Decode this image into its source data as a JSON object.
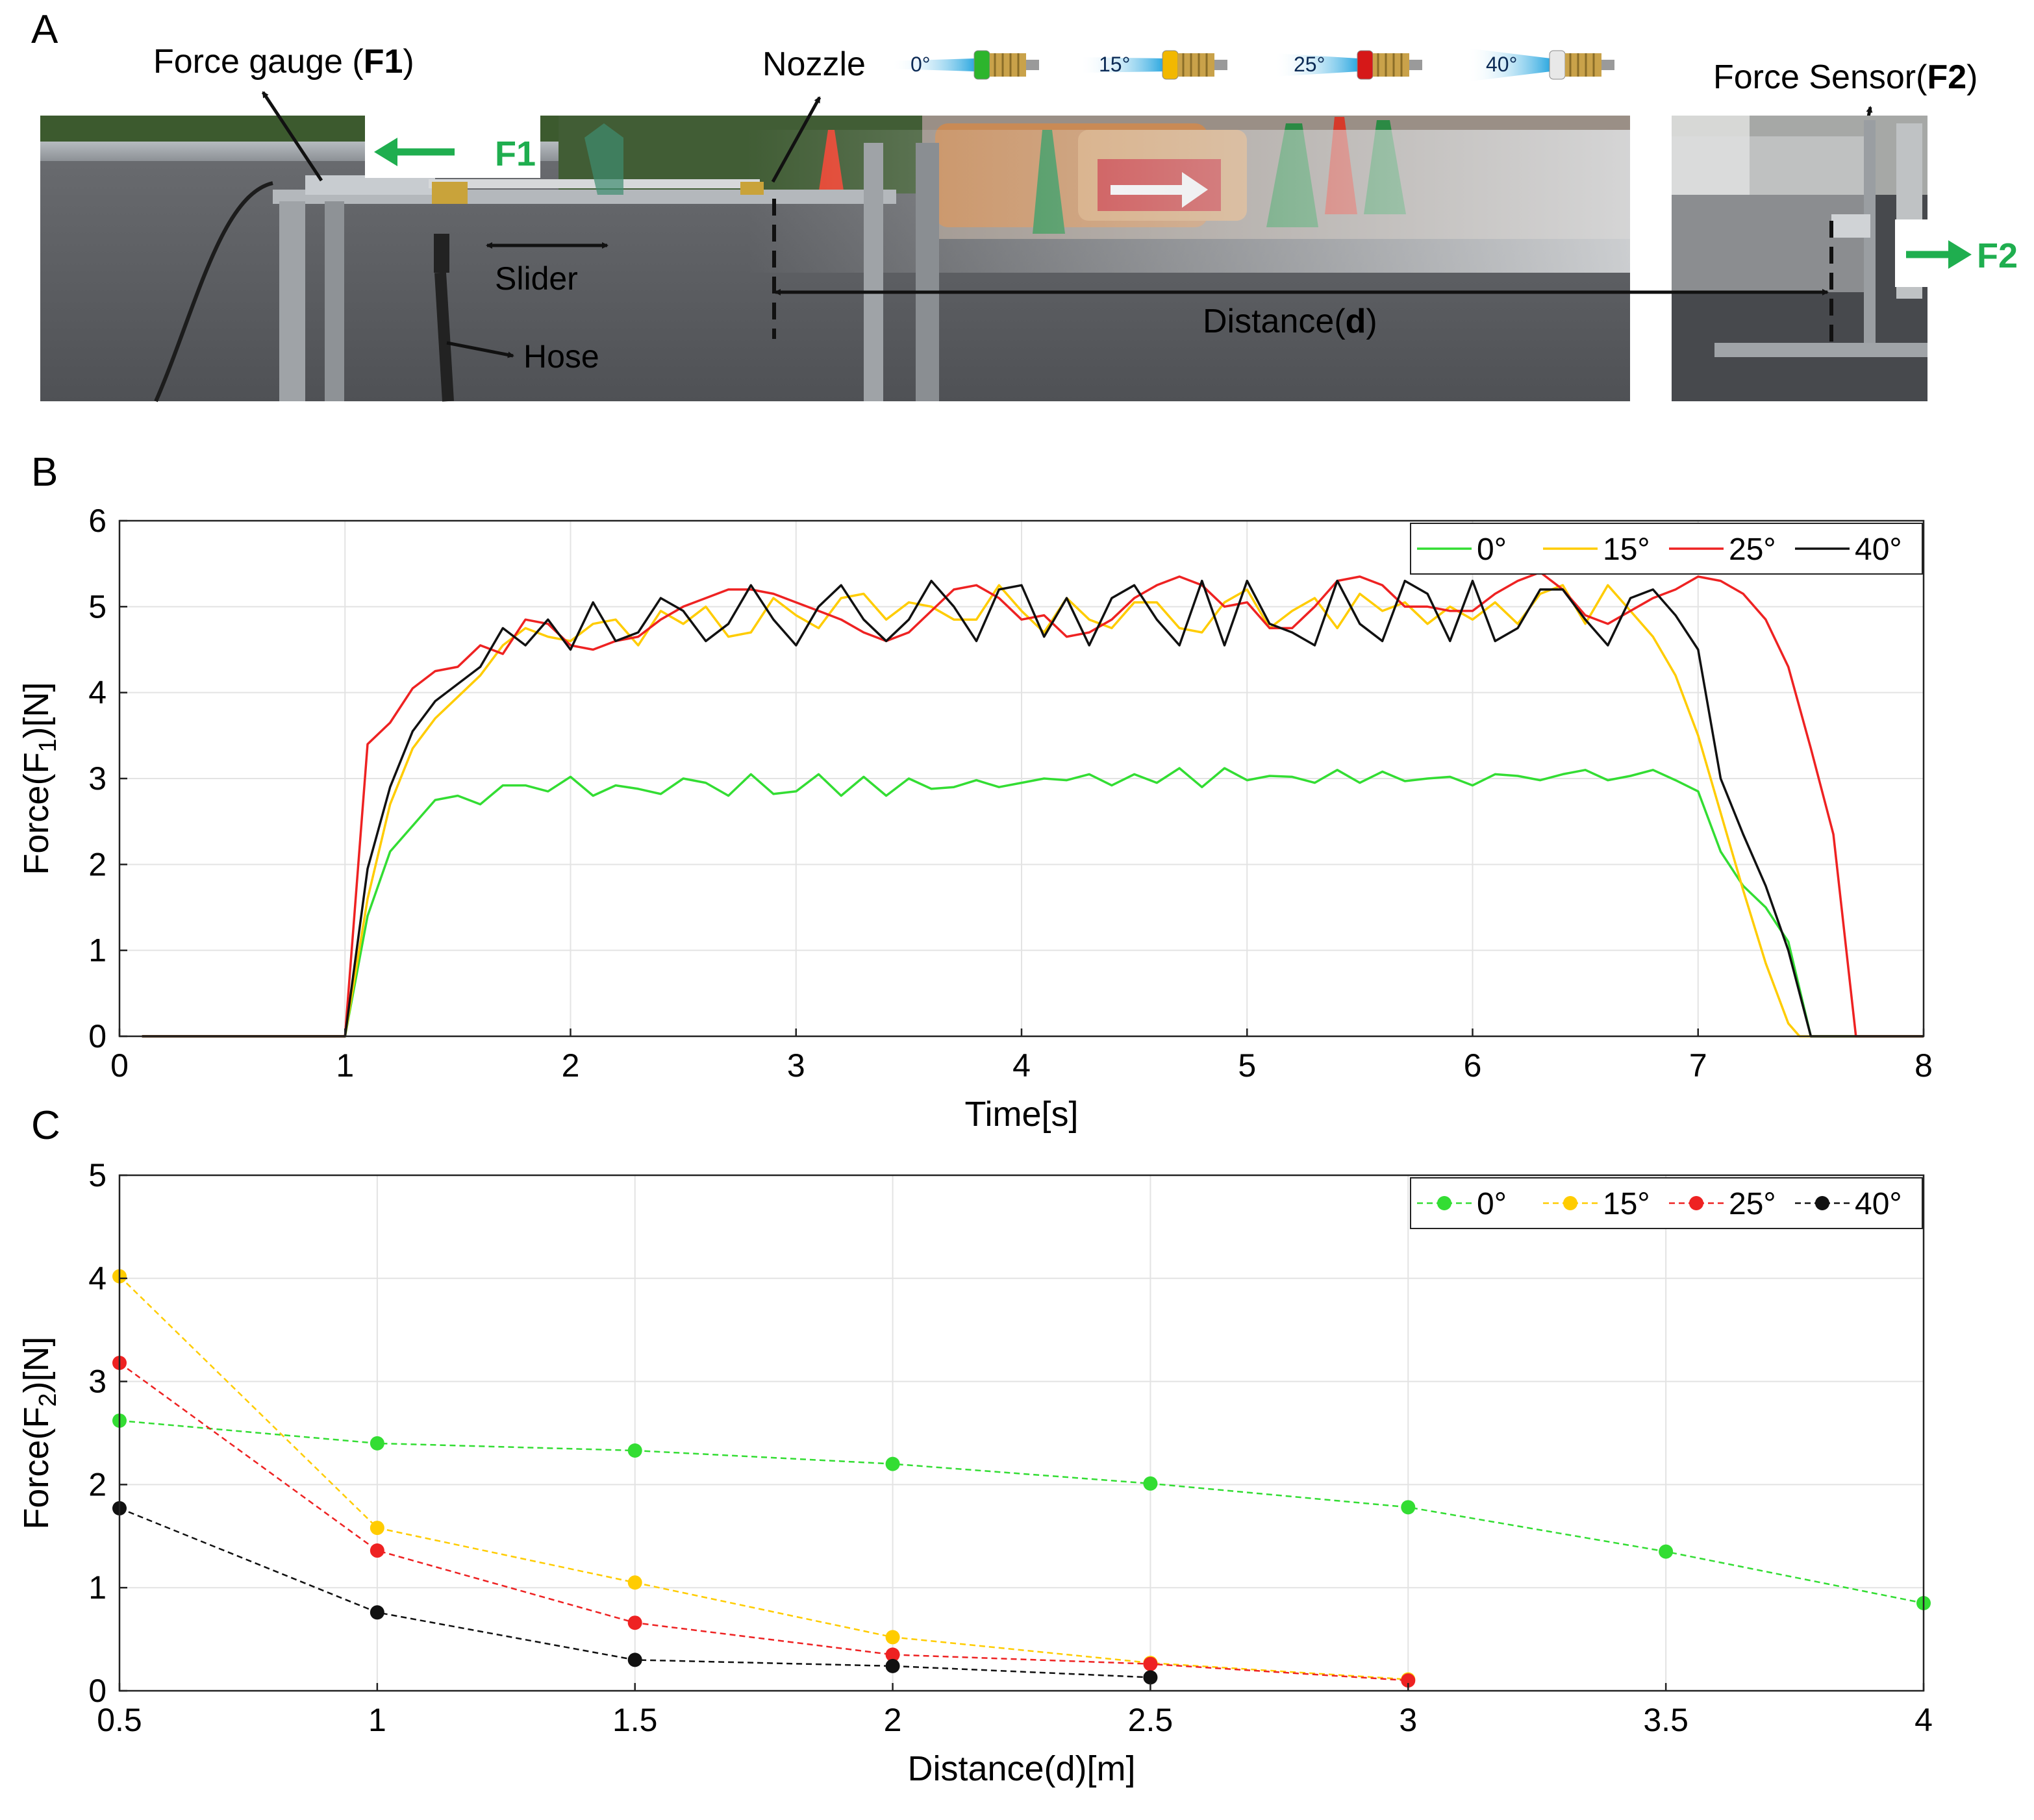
{
  "panel_letters": {
    "a": "A",
    "b": "B",
    "c": "C"
  },
  "photo": {
    "labels": {
      "force_gauge": "Force gauge",
      "force_gauge_sym": "F1",
      "nozzle": "Nozzle",
      "force_sensor": "Force Sensor",
      "force_sensor_sym": "F2",
      "slider": "Slider",
      "hose": "Hose",
      "distance": "Distance",
      "distance_sym": "d",
      "f1_arrow": "F1",
      "f2_arrow": "F2"
    },
    "nozzles": [
      {
        "angle": "0°",
        "tip_color": "#2db52d"
      },
      {
        "angle": "15°",
        "tip_color": "#f2b800"
      },
      {
        "angle": "25°",
        "tip_color": "#d61818"
      },
      {
        "angle": "40°",
        "tip_color": "#e8e8e8"
      }
    ],
    "colors": {
      "arrow_green": "#1fae4f",
      "spray_blue": "#2aa7e0",
      "asphalt": "#5b5d61"
    }
  },
  "chart_data": [
    {
      "type": "line",
      "panel": "B",
      "xlabel": "Time[s]",
      "ylabel": "Force(F1)[N]",
      "xlim": [
        0,
        8
      ],
      "ylim": [
        0,
        6
      ],
      "xticks": [
        0,
        1,
        2,
        3,
        4,
        5,
        6,
        7,
        8
      ],
      "yticks": [
        0,
        1,
        2,
        3,
        4,
        5,
        6
      ],
      "grid": true,
      "legend": "top-right",
      "series": [
        {
          "name": "0°",
          "color": "#33dd33",
          "x": [
            0.1,
            1.0,
            1.1,
            1.2,
            1.3,
            1.4,
            1.5,
            1.6,
            1.7,
            1.8,
            1.9,
            2.0,
            2.1,
            2.2,
            2.3,
            2.4,
            2.5,
            2.6,
            2.7,
            2.8,
            2.9,
            3.0,
            3.1,
            3.2,
            3.3,
            3.4,
            3.5,
            3.6,
            3.7,
            3.8,
            3.9,
            4.0,
            4.1,
            4.2,
            4.3,
            4.4,
            4.5,
            4.6,
            4.7,
            4.8,
            4.9,
            5.0,
            5.1,
            5.2,
            5.3,
            5.4,
            5.5,
            5.6,
            5.7,
            5.8,
            5.9,
            6.0,
            6.1,
            6.2,
            6.3,
            6.4,
            6.5,
            6.6,
            6.7,
            6.8,
            6.9,
            7.0,
            7.1,
            7.2,
            7.3,
            7.4,
            7.5,
            8.0
          ],
          "y": [
            0,
            0,
            1.4,
            2.15,
            2.45,
            2.75,
            2.8,
            2.7,
            2.92,
            2.92,
            2.85,
            3.02,
            2.8,
            2.92,
            2.88,
            2.82,
            3.0,
            2.95,
            2.8,
            3.05,
            2.82,
            2.85,
            3.05,
            2.8,
            3.02,
            2.8,
            3.0,
            2.88,
            2.9,
            2.98,
            2.9,
            2.95,
            3.0,
            2.98,
            3.05,
            2.92,
            3.05,
            2.95,
            3.12,
            2.9,
            3.12,
            2.98,
            3.03,
            3.02,
            2.95,
            3.1,
            2.95,
            3.08,
            2.97,
            3.0,
            3.02,
            2.92,
            3.05,
            3.03,
            2.98,
            3.05,
            3.1,
            2.98,
            3.03,
            3.1,
            2.98,
            2.85,
            2.15,
            1.75,
            1.5,
            1.1,
            0,
            0
          ]
        },
        {
          "name": "15°",
          "color": "#ffcc00",
          "x": [
            0.1,
            1.0,
            1.1,
            1.2,
            1.3,
            1.4,
            1.5,
            1.6,
            1.7,
            1.8,
            1.9,
            2.0,
            2.1,
            2.2,
            2.3,
            2.4,
            2.5,
            2.6,
            2.7,
            2.8,
            2.9,
            3.0,
            3.1,
            3.2,
            3.3,
            3.4,
            3.5,
            3.6,
            3.7,
            3.8,
            3.9,
            4.0,
            4.1,
            4.2,
            4.3,
            4.4,
            4.5,
            4.6,
            4.7,
            4.8,
            4.9,
            5.0,
            5.1,
            5.2,
            5.3,
            5.4,
            5.5,
            5.6,
            5.7,
            5.8,
            5.9,
            6.0,
            6.1,
            6.2,
            6.3,
            6.4,
            6.5,
            6.6,
            6.7,
            6.8,
            6.9,
            7.0,
            7.1,
            7.2,
            7.3,
            7.4,
            7.45,
            8.0
          ],
          "y": [
            0,
            0,
            1.6,
            2.7,
            3.35,
            3.7,
            3.95,
            4.2,
            4.55,
            4.75,
            4.65,
            4.6,
            4.8,
            4.85,
            4.55,
            4.95,
            4.8,
            5.0,
            4.65,
            4.7,
            5.1,
            4.9,
            4.75,
            5.1,
            5.15,
            4.85,
            5.05,
            5.0,
            4.85,
            4.85,
            5.25,
            4.95,
            4.7,
            5.1,
            4.85,
            4.75,
            5.05,
            5.05,
            4.75,
            4.7,
            5.05,
            5.2,
            4.75,
            4.95,
            5.1,
            4.75,
            5.15,
            4.95,
            5.05,
            4.8,
            5.0,
            4.85,
            5.05,
            4.8,
            5.15,
            5.25,
            4.8,
            5.25,
            4.95,
            4.65,
            4.2,
            3.5,
            2.6,
            1.7,
            0.85,
            0.15,
            0,
            0
          ]
        },
        {
          "name": "25°",
          "color": "#ee2222",
          "x": [
            0.1,
            1.0,
            1.1,
            1.2,
            1.3,
            1.4,
            1.5,
            1.6,
            1.7,
            1.8,
            1.9,
            2.0,
            2.1,
            2.2,
            2.3,
            2.4,
            2.5,
            2.6,
            2.7,
            2.8,
            2.9,
            3.0,
            3.1,
            3.2,
            3.3,
            3.4,
            3.5,
            3.6,
            3.7,
            3.8,
            3.9,
            4.0,
            4.1,
            4.2,
            4.3,
            4.4,
            4.5,
            4.6,
            4.7,
            4.8,
            4.9,
            5.0,
            5.1,
            5.2,
            5.3,
            5.4,
            5.5,
            5.6,
            5.7,
            5.8,
            5.9,
            6.0,
            6.1,
            6.2,
            6.3,
            6.4,
            6.5,
            6.6,
            6.7,
            6.8,
            6.9,
            7.0,
            7.1,
            7.2,
            7.3,
            7.4,
            7.5,
            7.6,
            7.7,
            8.0
          ],
          "y": [
            0,
            0,
            3.4,
            3.65,
            4.05,
            4.25,
            4.3,
            4.55,
            4.45,
            4.85,
            4.8,
            4.55,
            4.5,
            4.6,
            4.65,
            4.85,
            5.0,
            5.1,
            5.2,
            5.2,
            5.15,
            5.05,
            4.95,
            4.85,
            4.7,
            4.6,
            4.7,
            4.95,
            5.2,
            5.25,
            5.1,
            4.85,
            4.9,
            4.65,
            4.7,
            4.85,
            5.1,
            5.25,
            5.35,
            5.25,
            5.0,
            5.05,
            4.75,
            4.75,
            5.0,
            5.3,
            5.35,
            5.25,
            5.0,
            5.0,
            4.95,
            4.95,
            5.15,
            5.3,
            5.4,
            5.2,
            4.9,
            4.8,
            4.95,
            5.1,
            5.2,
            5.35,
            5.3,
            5.15,
            4.85,
            4.3,
            3.35,
            2.35,
            0,
            0
          ]
        },
        {
          "name": "40°",
          "color": "#111111",
          "x": [
            0.1,
            1.0,
            1.1,
            1.2,
            1.3,
            1.4,
            1.5,
            1.6,
            1.7,
            1.8,
            1.9,
            2.0,
            2.1,
            2.2,
            2.3,
            2.4,
            2.5,
            2.6,
            2.7,
            2.8,
            2.9,
            3.0,
            3.1,
            3.2,
            3.3,
            3.4,
            3.5,
            3.6,
            3.7,
            3.8,
            3.9,
            4.0,
            4.1,
            4.2,
            4.3,
            4.4,
            4.5,
            4.6,
            4.7,
            4.8,
            4.9,
            5.0,
            5.1,
            5.2,
            5.3,
            5.4,
            5.5,
            5.6,
            5.7,
            5.8,
            5.9,
            6.0,
            6.1,
            6.2,
            6.3,
            6.4,
            6.5,
            6.6,
            6.7,
            6.8,
            6.9,
            7.0,
            7.1,
            7.2,
            7.3,
            7.4,
            7.5,
            8.0
          ],
          "y": [
            0,
            0,
            1.95,
            2.9,
            3.55,
            3.9,
            4.1,
            4.3,
            4.75,
            4.55,
            4.85,
            4.5,
            5.05,
            4.6,
            4.7,
            5.1,
            4.95,
            4.6,
            4.8,
            5.25,
            4.85,
            4.55,
            5.0,
            5.25,
            4.85,
            4.6,
            4.85,
            5.3,
            5.0,
            4.6,
            5.2,
            5.25,
            4.65,
            5.1,
            4.55,
            5.1,
            5.25,
            4.85,
            4.55,
            5.3,
            4.55,
            5.3,
            4.8,
            4.7,
            4.55,
            5.3,
            4.8,
            4.6,
            5.3,
            5.15,
            4.6,
            5.3,
            4.6,
            4.75,
            5.2,
            5.2,
            4.85,
            4.55,
            5.1,
            5.2,
            4.9,
            4.5,
            3.0,
            2.35,
            1.75,
            1.0,
            0,
            0
          ]
        }
      ]
    },
    {
      "type": "line",
      "panel": "C",
      "xlabel": "Distance(d)[m]",
      "ylabel": "Force(F2)[N]",
      "xlim": [
        0.5,
        4
      ],
      "ylim": [
        0,
        5
      ],
      "xticks": [
        0.5,
        1,
        1.5,
        2,
        2.5,
        3,
        3.5,
        4
      ],
      "yticks": [
        0,
        1,
        2,
        3,
        4,
        5
      ],
      "grid": true,
      "legend": "top-right",
      "line_style": "dashed with circle markers",
      "series": [
        {
          "name": "0°",
          "color": "#33dd33",
          "x": [
            0.5,
            1,
            1.5,
            2,
            2.5,
            3,
            3.5,
            4
          ],
          "y": [
            2.62,
            2.4,
            2.33,
            2.2,
            2.01,
            1.78,
            1.35,
            0.85
          ]
        },
        {
          "name": "15°",
          "color": "#ffcc00",
          "x": [
            0.5,
            1,
            1.5,
            2,
            2.5,
            3
          ],
          "y": [
            4.02,
            1.58,
            1.05,
            0.52,
            0.27,
            0.11
          ]
        },
        {
          "name": "25°",
          "color": "#ee2222",
          "x": [
            0.5,
            1,
            1.5,
            2,
            2.5,
            3
          ],
          "y": [
            3.18,
            1.36,
            0.66,
            0.35,
            0.26,
            0.1
          ]
        },
        {
          "name": "40°",
          "color": "#111111",
          "x": [
            0.5,
            1,
            1.5,
            2,
            2.5
          ],
          "y": [
            1.77,
            0.76,
            0.3,
            0.24,
            0.13
          ]
        }
      ]
    }
  ]
}
